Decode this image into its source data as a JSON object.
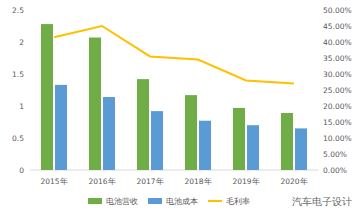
{
  "chart_data": {
    "type": "bar",
    "categories": [
      "2015年",
      "2016年",
      "2017年",
      "2018年",
      "2019年",
      "2020年"
    ],
    "series": [
      {
        "name": "电池营收",
        "color": "#70ad47",
        "values": [
          2.28,
          2.07,
          1.42,
          1.17,
          0.97,
          0.89
        ]
      },
      {
        "name": "电池成本",
        "color": "#5b9bd5",
        "values": [
          1.33,
          1.14,
          0.92,
          0.77,
          0.7,
          0.65
        ]
      },
      {
        "name": "毛利率",
        "color": "#ffc000",
        "type": "line",
        "axis": "y2",
        "values": [
          41.5,
          45.0,
          35.5,
          34.5,
          28.0,
          27.0
        ]
      }
    ],
    "ylim": [
      0,
      2.5
    ],
    "yticks": [
      0,
      0.5,
      1,
      1.5,
      2,
      2.5
    ],
    "y2lim": [
      0,
      50
    ],
    "y2ticks": [
      {
        "value": 0,
        "label": "0.00%"
      },
      {
        "value": 5,
        "label": "5.00%"
      },
      {
        "value": 10,
        "label": "10.00%"
      },
      {
        "value": 15,
        "label": "15.00%"
      },
      {
        "value": 20,
        "label": "20.00%"
      },
      {
        "value": 25,
        "label": "25.00%"
      },
      {
        "value": 30,
        "label": "30.00%"
      },
      {
        "value": 35,
        "label": "35.00%"
      },
      {
        "value": 40,
        "label": "40.00%"
      },
      {
        "value": 45,
        "label": "45.00%"
      },
      {
        "value": 50,
        "label": "50.00%"
      }
    ],
    "grid": false,
    "legend": "bottom",
    "annotations": [
      "汽车电子设计"
    ]
  }
}
